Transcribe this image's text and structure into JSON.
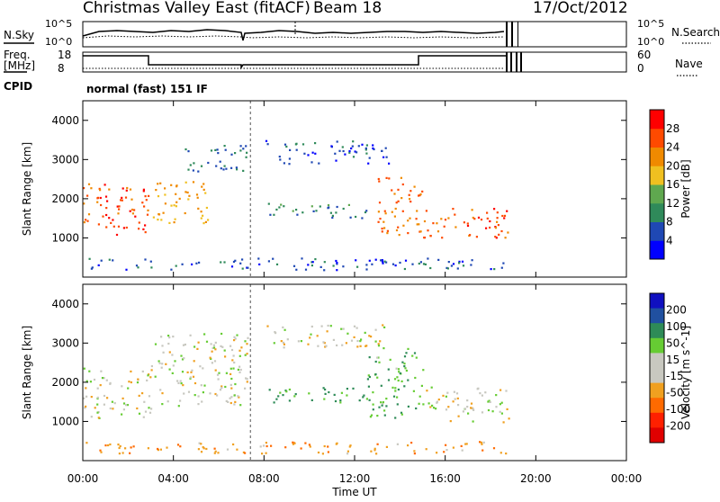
{
  "header": {
    "title": "Christmas Valley East (fitACF)",
    "beam": "Beam 18",
    "date": "17/Oct/2012"
  },
  "status_panels": {
    "nsky_label": "N.Sky",
    "nsearch_label": "N.Search",
    "nsky_ticks": [
      "10^5",
      "10^0"
    ],
    "nsky_right_ticks": [
      "10^5",
      "10^0"
    ],
    "freq_label_line1": "Freq.",
    "freq_label_line2": "[MHz]",
    "freq_ticks": [
      "18",
      "8"
    ],
    "nave_label": "Nave",
    "nave_ticks": [
      "60",
      "0"
    ],
    "cpid_label": "CPID",
    "cpid_value": "normal (fast) 151 IF"
  },
  "colors": {
    "power_scale": [
      "#0000ff",
      "#1f48b4",
      "#2f8a5a",
      "#5fa84f",
      "#f0c020",
      "#f08a00",
      "#ff4a00",
      "#ff0000"
    ],
    "velocity_scale": [
      "#1010c0",
      "#2050a0",
      "#2e8b57",
      "#66cc33",
      "#c8c8c0",
      "#c8c8c0",
      "#f0a020",
      "#ff6a00",
      "#ff2000",
      "#e00000"
    ],
    "ground_scatter": "#c0c0b8"
  },
  "chart_data": [
    {
      "type": "heatmap",
      "name": "power",
      "ylabel": "Slant Range [km]",
      "yticks": [
        "1000",
        "2000",
        "3000",
        "4000"
      ],
      "ylim": [
        0,
        4500
      ],
      "xlim": [
        "00:00",
        "24:00"
      ],
      "colorbar_label": "Power [dB]",
      "colorbar_ticks": [
        "4",
        "8",
        "12",
        "16",
        "20",
        "24",
        "28"
      ],
      "features": [
        {
          "t_start": 0.0,
          "t_end": 3.0,
          "range_low": 1100,
          "range_high": 2400,
          "power": 26
        },
        {
          "t_start": 3.0,
          "t_end": 5.5,
          "range_low": 1400,
          "range_high": 2500,
          "power": 20
        },
        {
          "t_start": 4.5,
          "t_end": 7.3,
          "range_low": 2700,
          "range_high": 3400,
          "power": 8
        },
        {
          "t_start": 8.0,
          "t_end": 13.5,
          "range_low": 2900,
          "range_high": 3500,
          "power": 6
        },
        {
          "t_start": 8.0,
          "t_end": 12.5,
          "range_low": 1500,
          "range_high": 1900,
          "power": 10
        },
        {
          "t_start": 13.0,
          "t_end": 15.0,
          "range_low": 1100,
          "range_high": 2600,
          "power": 24
        },
        {
          "t_start": 15.0,
          "t_end": 18.8,
          "range_low": 1000,
          "range_high": 1800,
          "power": 26
        },
        {
          "t_start": 0.0,
          "t_end": 18.8,
          "range_low": 200,
          "range_high": 500,
          "power": 6
        }
      ]
    },
    {
      "type": "heatmap",
      "name": "velocity",
      "ylabel": "Slant Range [km]",
      "xlabel": "Time UT",
      "yticks": [
        "1000",
        "2000",
        "3000",
        "4000"
      ],
      "ylim": [
        0,
        4500
      ],
      "xticks": [
        "00:00",
        "04:00",
        "08:00",
        "12:00",
        "16:00",
        "20:00",
        "00:00"
      ],
      "colorbar_label": "Velocity [m s^-1]",
      "colorbar_ticks": [
        "200",
        "100",
        "50",
        "15",
        "-15",
        "-50",
        "-100",
        "-200"
      ],
      "features": [
        {
          "t_start": 0.0,
          "t_end": 3.0,
          "range_low": 1100,
          "range_high": 2400,
          "velocity": 0
        },
        {
          "t_start": 3.0,
          "t_end": 7.3,
          "range_low": 1400,
          "range_high": 3300,
          "velocity": 0
        },
        {
          "t_start": 8.0,
          "t_end": 13.5,
          "range_low": 2900,
          "range_high": 3500,
          "velocity": 0
        },
        {
          "t_start": 8.0,
          "t_end": 12.5,
          "range_low": 1500,
          "range_high": 1900,
          "velocity": 60
        },
        {
          "t_start": 12.5,
          "t_end": 15.0,
          "range_low": 1100,
          "range_high": 2900,
          "velocity": 40
        },
        {
          "t_start": 15.0,
          "t_end": 18.8,
          "range_low": 1000,
          "range_high": 1900,
          "velocity": 0
        },
        {
          "t_start": 0.0,
          "t_end": 18.8,
          "range_low": 200,
          "range_high": 500,
          "velocity": -40
        }
      ]
    }
  ]
}
